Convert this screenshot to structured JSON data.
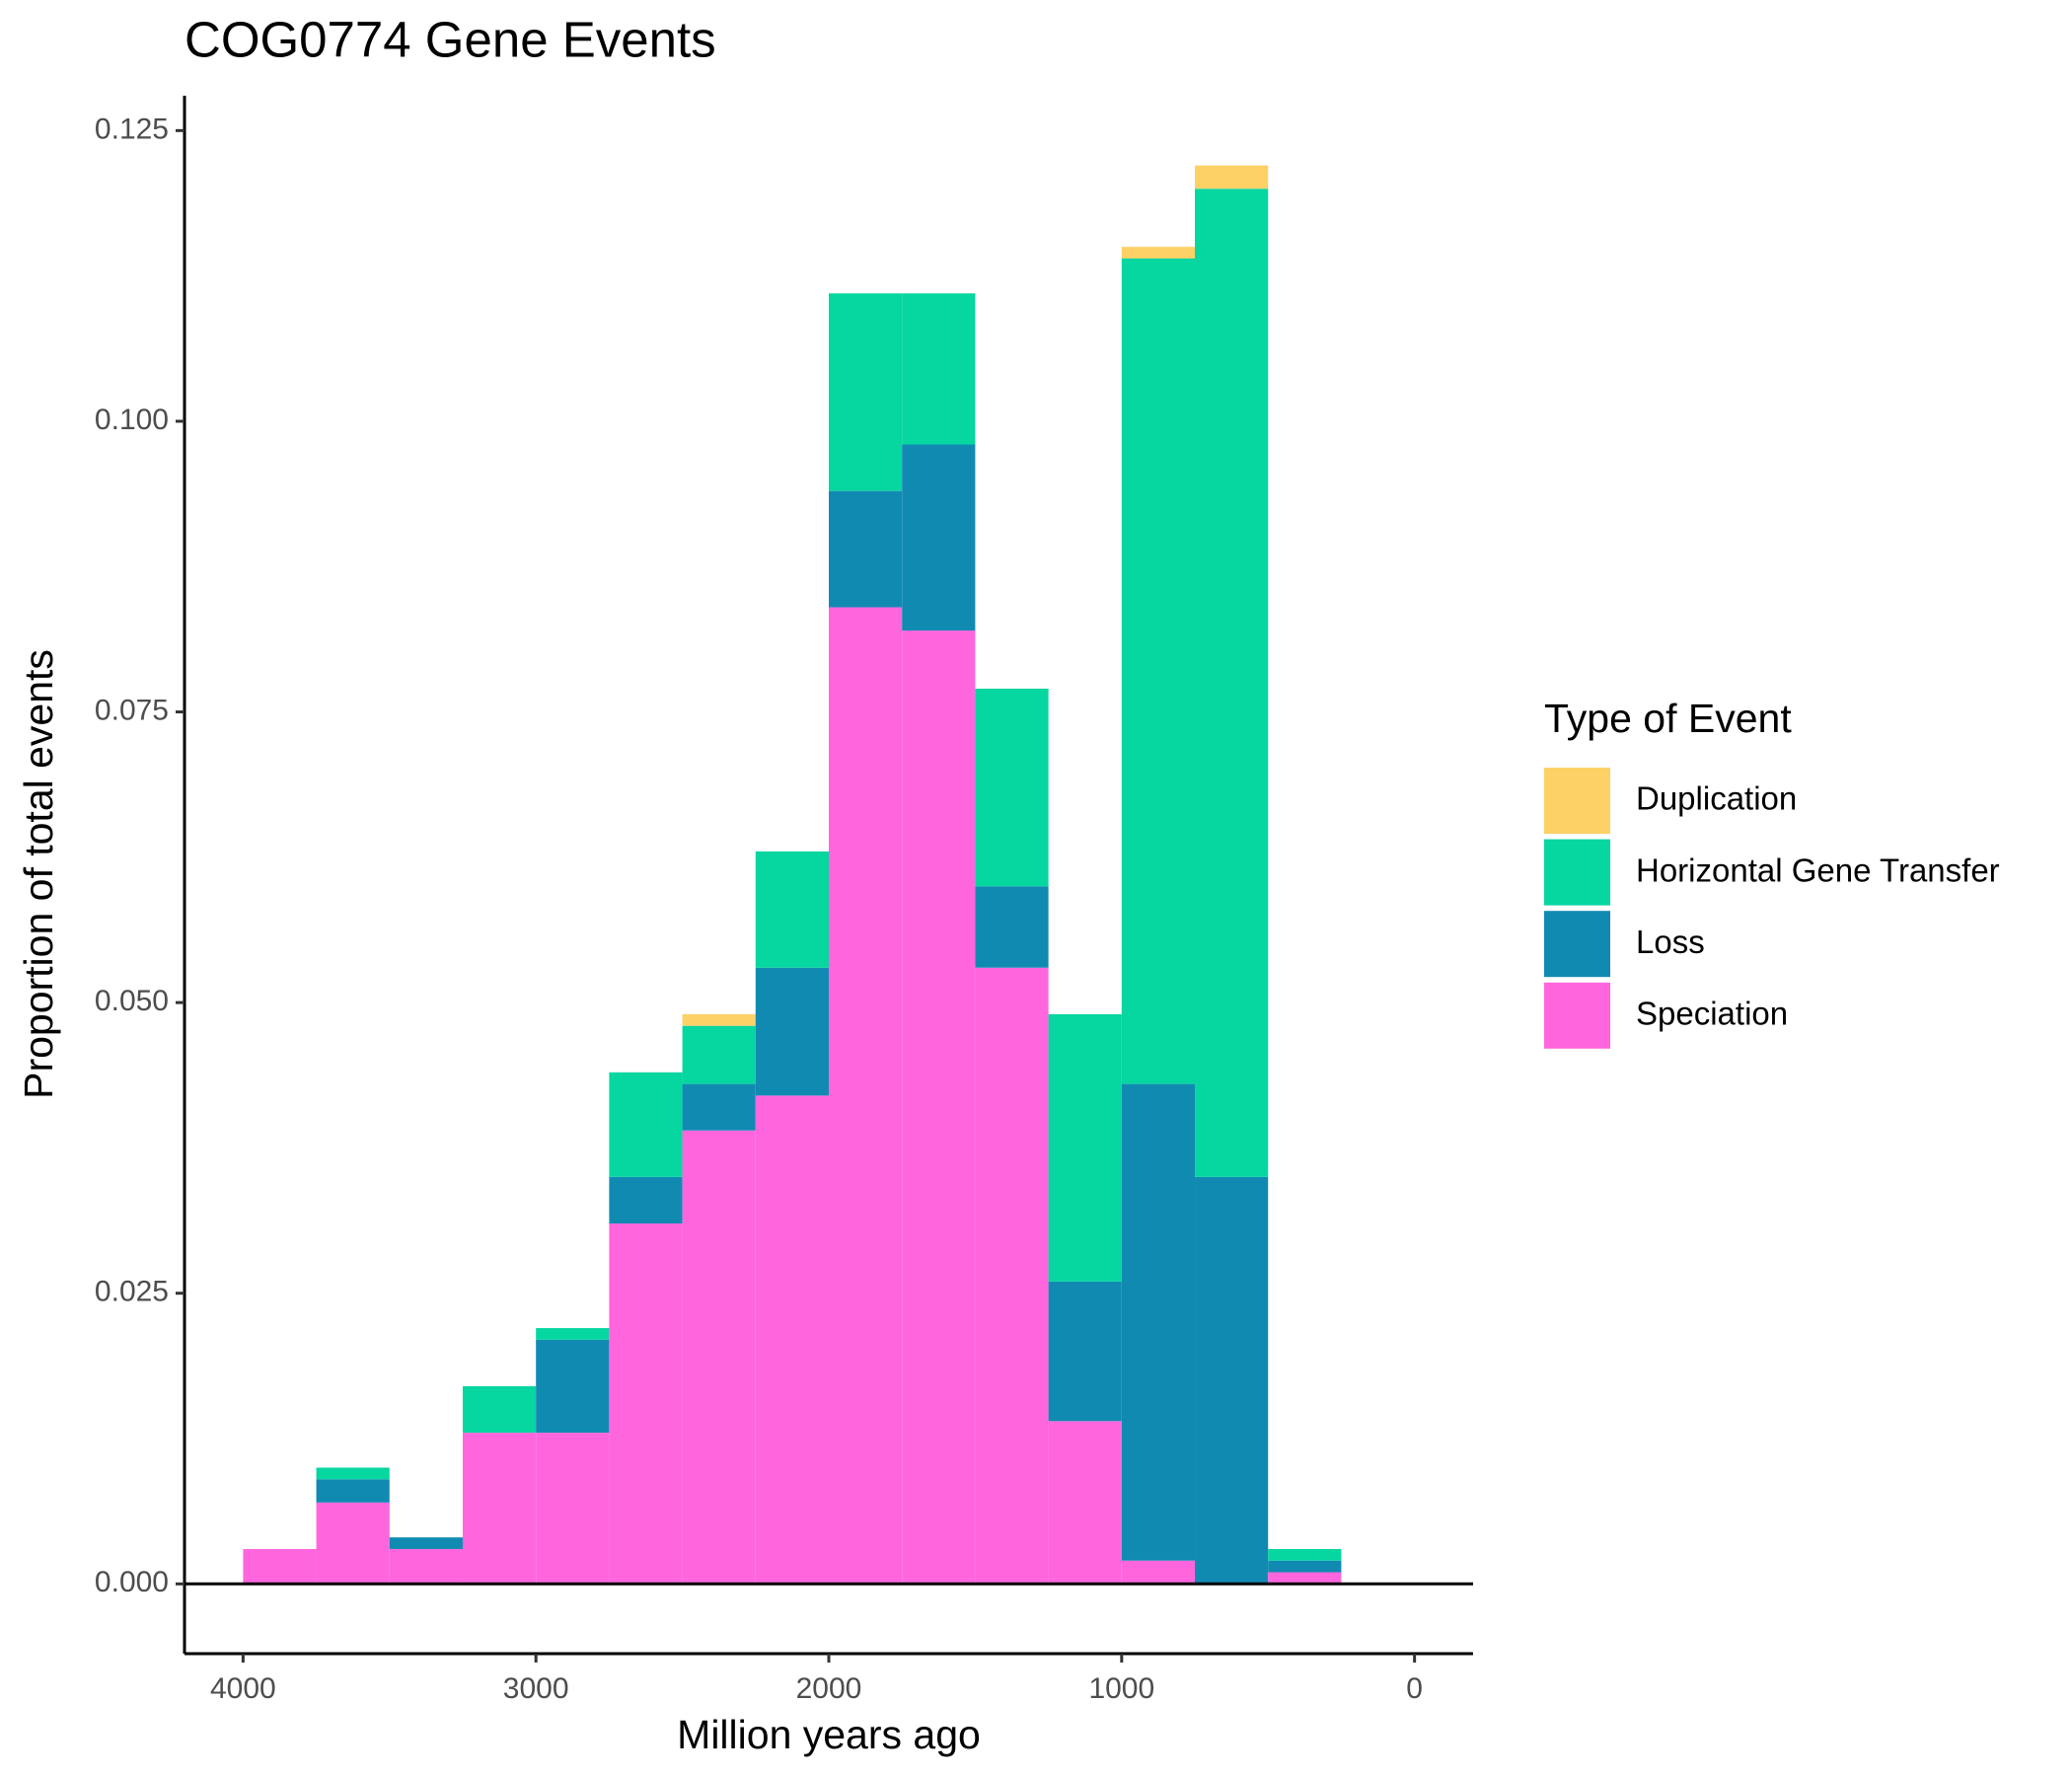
{
  "chart_data": {
    "type": "histogram",
    "title": "COG0774 Gene Events",
    "x_label": "Million years ago",
    "y_label": "Proportion of total events",
    "legend_title": "Type of Event",
    "legend_position": "right",
    "stacked": true,
    "bins": [
      4000,
      3750,
      3500,
      3250,
      3000,
      2750,
      2500,
      2250,
      2000,
      1750,
      1500,
      1250,
      1000,
      750,
      500,
      250
    ],
    "series": [
      {
        "name": "Duplication",
        "color": "#fed166",
        "values": [
          0,
          0,
          0,
          0,
          0,
          0,
          0.001,
          0,
          0,
          0,
          0,
          0,
          0.001,
          0.002,
          0
        ]
      },
      {
        "name": "Horizontal Gene Transfer",
        "color": "#06d6a0",
        "values": [
          0,
          0.001,
          0,
          0.004,
          0.001,
          0.009,
          0.005,
          0.01,
          0.017,
          0.013,
          0.017,
          0.023,
          0.071,
          0.085,
          0.001
        ]
      },
      {
        "name": "Loss",
        "color": "#118ab2",
        "values": [
          0,
          0.002,
          0.001,
          0,
          0.008,
          0.004,
          0.004,
          0.011,
          0.01,
          0.016,
          0.007,
          0.012,
          0.041,
          0.035,
          0.001
        ]
      },
      {
        "name": "Speciation",
        "color": "#ff66dd",
        "values": [
          0.003,
          0.007,
          0.003,
          0.013,
          0.013,
          0.031,
          0.039,
          0.042,
          0.084,
          0.082,
          0.053,
          0.014,
          0.002,
          0,
          0.001
        ]
      }
    ],
    "xlim": [
      4200,
      -200
    ],
    "xticks": [
      4000,
      3000,
      2000,
      1000,
      0
    ],
    "ylim": [
      -0.006,
      0.128
    ],
    "yticks": [
      {
        "value": 0,
        "label": "0.000"
      },
      0.025,
      {
        "value": 0.05,
        "label": "0.050"
      },
      0.075,
      {
        "value": 0.1,
        "label": "0.100"
      },
      0.125
    ]
  }
}
